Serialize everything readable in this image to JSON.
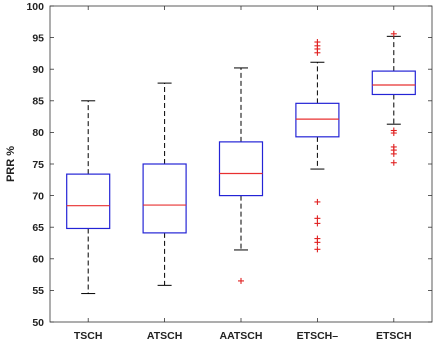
{
  "chart_data": {
    "type": "box",
    "title": "",
    "xlabel": "",
    "ylabel": "PRR %",
    "ylim": [
      50,
      100
    ],
    "yticks": [
      50,
      55,
      60,
      65,
      70,
      75,
      80,
      85,
      90,
      95,
      100
    ],
    "grid": false,
    "colors": {
      "box": "#2424d6",
      "median": "#e83030",
      "whisker": "#000000",
      "outlier": "#e02020",
      "axis": "#333333"
    },
    "categories": [
      "TSCH",
      "ATSCH",
      "AATSCH",
      "ETSCH–",
      "ETSCH"
    ],
    "boxes": [
      {
        "name": "TSCH",
        "whisker_low": 54.5,
        "q1": 64.8,
        "median": 68.4,
        "q3": 73.4,
        "whisker_high": 85.0,
        "outliers": []
      },
      {
        "name": "ATSCH",
        "whisker_low": 55.8,
        "q1": 64.1,
        "median": 68.5,
        "q3": 75.0,
        "whisker_high": 87.8,
        "outliers": []
      },
      {
        "name": "AATSCH",
        "whisker_low": 61.4,
        "q1": 70.0,
        "median": 73.5,
        "q3": 78.5,
        "whisker_high": 90.2,
        "outliers": [
          56.5
        ]
      },
      {
        "name": "ETSCH–",
        "whisker_low": 74.2,
        "q1": 79.3,
        "median": 82.1,
        "q3": 84.6,
        "whisker_high": 91.1,
        "outliers": [
          94.3,
          93.7,
          93.2,
          92.6,
          69.0,
          66.4,
          65.6,
          63.2,
          62.6,
          61.5
        ]
      },
      {
        "name": "ETSCH",
        "whisker_low": 81.3,
        "q1": 86.0,
        "median": 87.5,
        "q3": 89.7,
        "whisker_high": 95.2,
        "outliers": [
          95.6,
          80.3,
          79.9,
          77.7,
          77.2,
          76.6,
          75.2
        ]
      }
    ]
  }
}
